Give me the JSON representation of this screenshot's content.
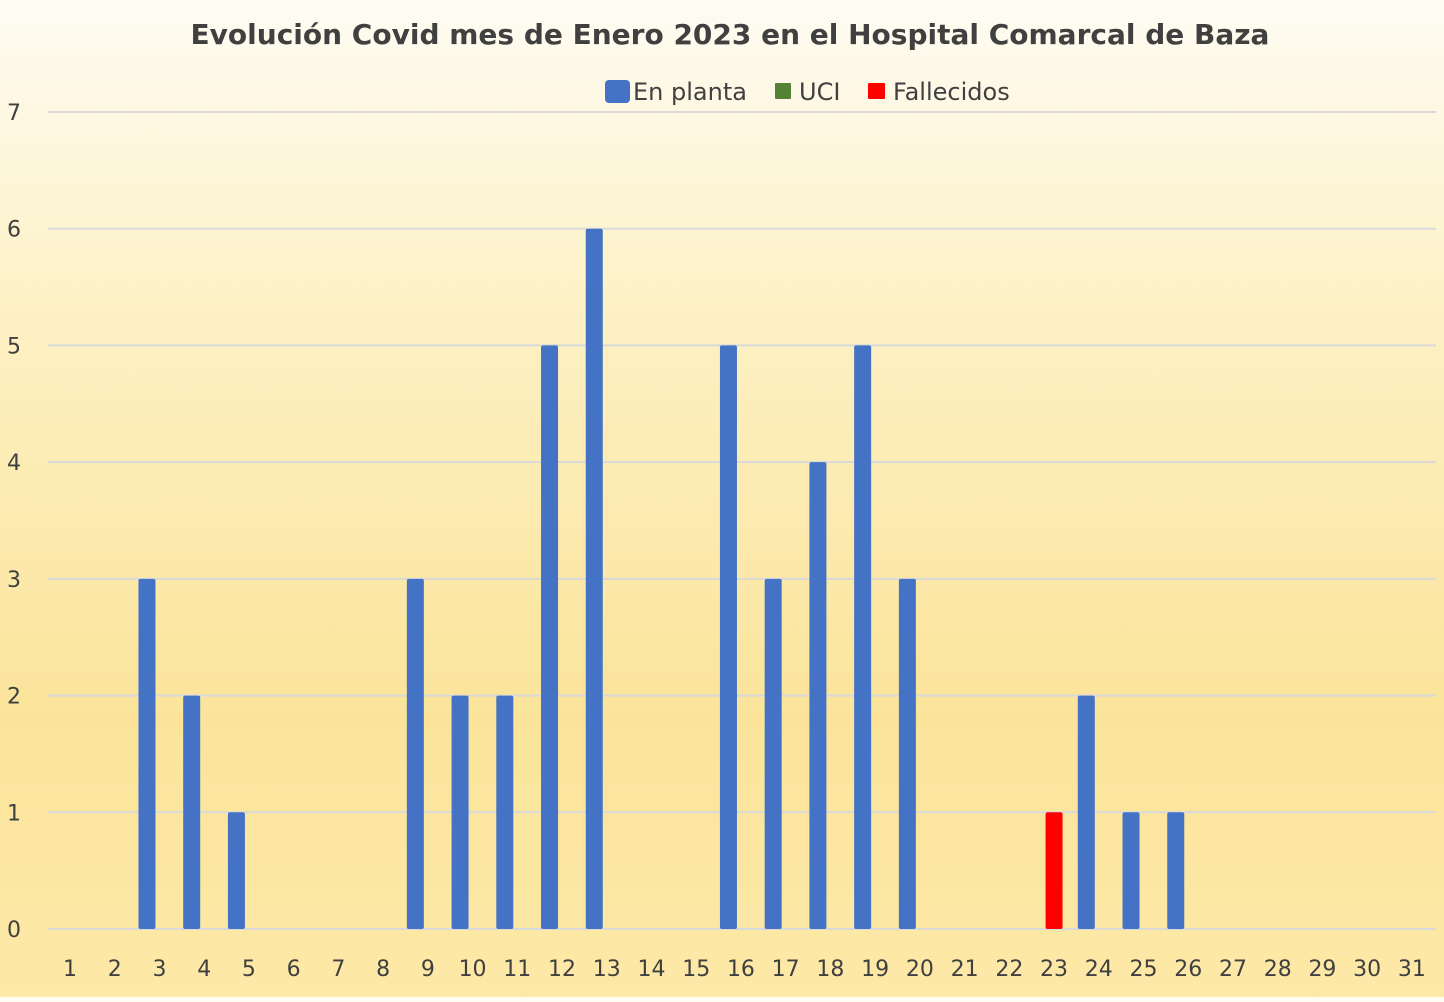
{
  "chart_data": {
    "type": "bar",
    "title": "Evolución Covid mes de Enero 2023 en el Hospital Comarcal de Baza",
    "xlabel": "",
    "ylabel": "",
    "ylim": [
      0,
      7
    ],
    "yticks": [
      0,
      1,
      2,
      3,
      4,
      5,
      6,
      7
    ],
    "grid": true,
    "legend_position": "top",
    "categories": [
      "1",
      "2",
      "3",
      "4",
      "5",
      "6",
      "7",
      "8",
      "9",
      "10",
      "11",
      "12",
      "13",
      "14",
      "15",
      "16",
      "17",
      "18",
      "19",
      "20",
      "21",
      "22",
      "23",
      "24",
      "25",
      "26",
      "27",
      "28",
      "29",
      "30",
      "31"
    ],
    "series": [
      {
        "name": "En planta",
        "color": "#4472c4",
        "values": [
          0,
          0,
          3,
          2,
          1,
          0,
          0,
          0,
          3,
          2,
          2,
          5,
          6,
          0,
          0,
          5,
          3,
          4,
          5,
          3,
          0,
          0,
          0,
          2,
          1,
          1,
          0,
          0,
          0,
          0,
          0
        ]
      },
      {
        "name": "UCI",
        "color": "#548235",
        "values": [
          0,
          0,
          0,
          0,
          0,
          0,
          0,
          0,
          0,
          0,
          0,
          0,
          0,
          0,
          0,
          0,
          0,
          0,
          0,
          0,
          0,
          0,
          0,
          0,
          0,
          0,
          0,
          0,
          0,
          0,
          0
        ]
      },
      {
        "name": "Fallecidos",
        "color": "#ff0000",
        "values": [
          0,
          0,
          0,
          0,
          0,
          0,
          0,
          0,
          0,
          0,
          0,
          0,
          0,
          0,
          0,
          0,
          0,
          0,
          0,
          0,
          0,
          0,
          1,
          0,
          0,
          0,
          0,
          0,
          0,
          0,
          0
        ]
      }
    ]
  }
}
